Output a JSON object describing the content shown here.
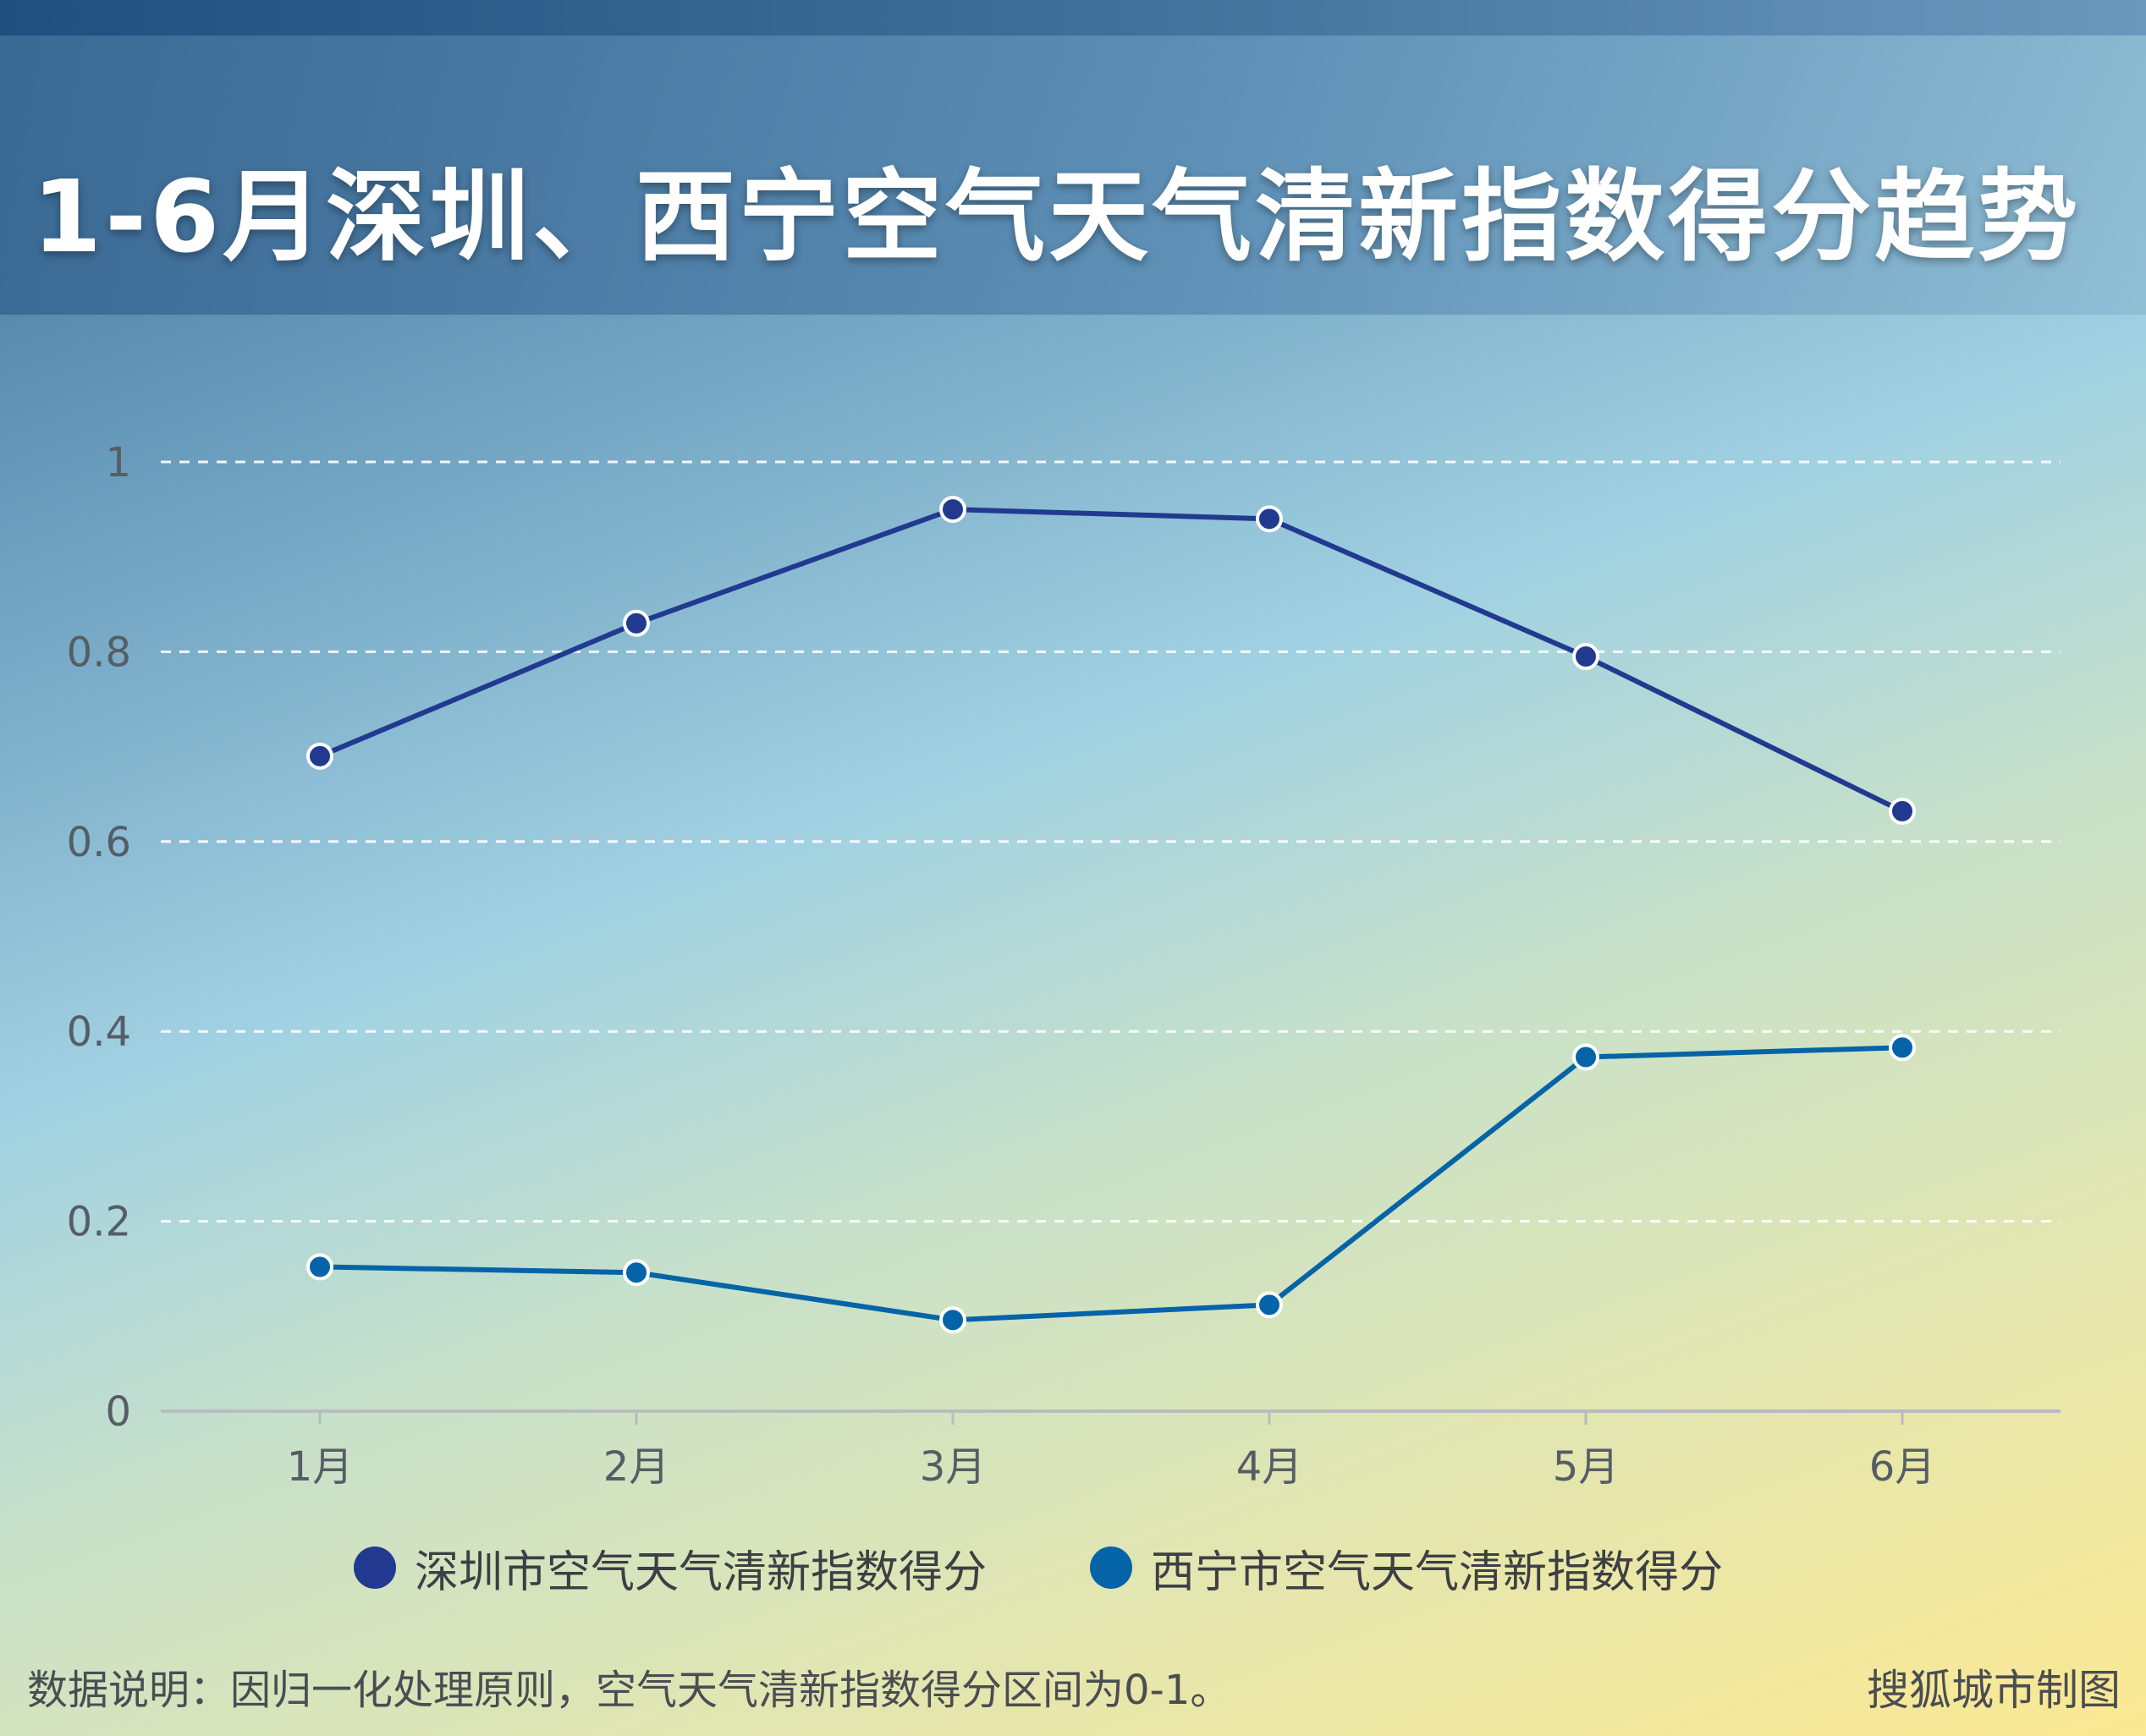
{
  "title": "1-6月深圳、西宁空气天气清新指数得分趋势",
  "footnote": "数据说明：因归一化处理原则，空气天气清新指数得分区间为0-1。",
  "source": "搜狐城市制图",
  "legend": [
    {
      "label": "深圳市空气天气清新指数得分",
      "color": "#213a8f"
    },
    {
      "label": "西宁市空气天气清新指数得分",
      "color": "#0564a8"
    }
  ],
  "chart_data": {
    "type": "line",
    "categories": [
      "1月",
      "2月",
      "3月",
      "4月",
      "5月",
      "6月"
    ],
    "series": [
      {
        "name": "深圳市空气天气清新指数得分",
        "color": "#213a8f",
        "values": [
          0.69,
          0.83,
          0.95,
          0.94,
          0.795,
          0.632
        ]
      },
      {
        "name": "西宁市空气天气清新指数得分",
        "color": "#0564a8",
        "values": [
          0.152,
          0.146,
          0.096,
          0.112,
          0.373,
          0.383
        ]
      }
    ],
    "ylim": [
      0,
      1
    ],
    "yticks": [
      "0",
      "0.2",
      "0.4",
      "0.6",
      "0.8",
      "1"
    ],
    "xlabel": "",
    "ylabel": "",
    "grid": true,
    "legend_position": "bottom"
  }
}
